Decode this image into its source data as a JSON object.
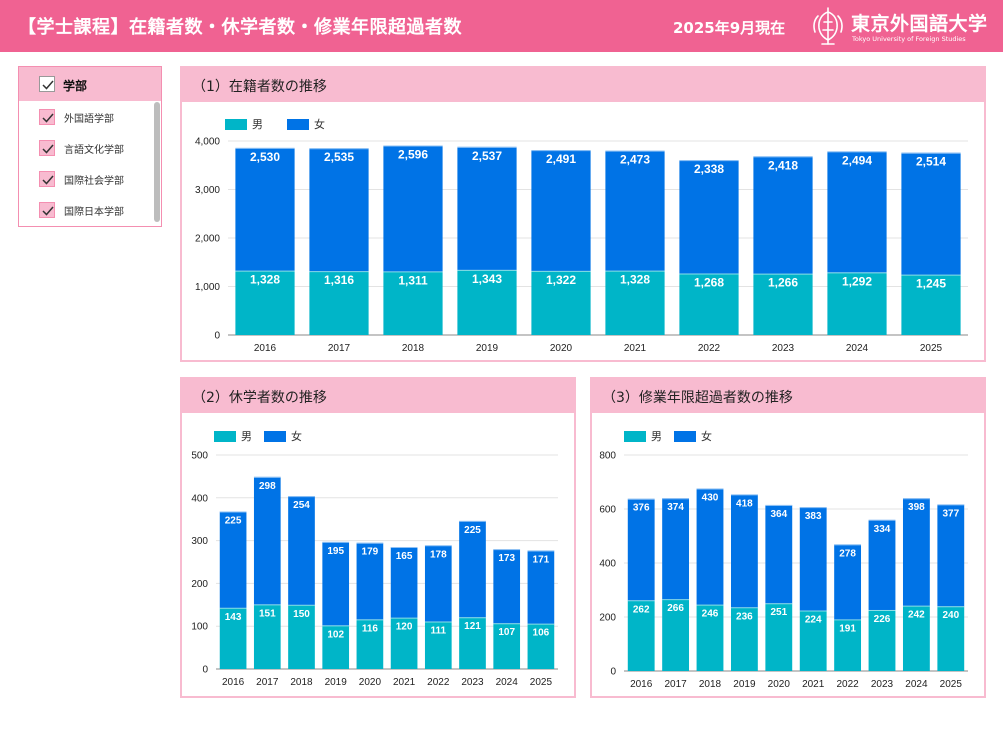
{
  "header": {
    "title": "【学士課程】在籍者数・休学者数・修業年限超過者数",
    "as_of": "2025年9月現在",
    "logo_name": "東京外国語大学",
    "logo_name_en": "Tokyo University of Foreign Studies"
  },
  "colors": {
    "header_bg": "#f06292",
    "panel_head": "#f8bbd0",
    "male": "#00b5c8",
    "female": "#0073e6"
  },
  "filter": {
    "header_label": "学部",
    "items": [
      {
        "label": "外国語学部",
        "checked": true
      },
      {
        "label": "言語文化学部",
        "checked": true
      },
      {
        "label": "国際社会学部",
        "checked": true
      },
      {
        "label": "国際日本学部",
        "checked": true
      }
    ]
  },
  "panels": [
    {
      "title": "（1）在籍者数の推移"
    },
    {
      "title": "（2）休学者数の推移"
    },
    {
      "title": "（3）修業年限超過者数の推移"
    }
  ],
  "chart_data": [
    {
      "type": "bar",
      "stacked": true,
      "title": "（1）在籍者数の推移",
      "categories": [
        "2016",
        "2017",
        "2018",
        "2019",
        "2020",
        "2021",
        "2022",
        "2023",
        "2024",
        "2025"
      ],
      "series": [
        {
          "name": "男",
          "values": [
            1328,
            1316,
            1311,
            1343,
            1322,
            1328,
            1268,
            1266,
            1292,
            1245
          ]
        },
        {
          "name": "女",
          "values": [
            2530,
            2535,
            2596,
            2537,
            2491,
            2473,
            2338,
            2418,
            2494,
            2514
          ]
        }
      ],
      "ylim": [
        0,
        4000
      ],
      "yticks": [
        0,
        1000,
        2000,
        3000,
        4000
      ],
      "ytick_labels": [
        "0",
        "1,000",
        "2,000",
        "3,000",
        "4,000"
      ],
      "legend": "top-left",
      "grid": true
    },
    {
      "type": "bar",
      "stacked": true,
      "title": "（2）休学者数の推移",
      "categories": [
        "2016",
        "2017",
        "2018",
        "2019",
        "2020",
        "2021",
        "2022",
        "2023",
        "2024",
        "2025"
      ],
      "series": [
        {
          "name": "男",
          "values": [
            143,
            151,
            150,
            102,
            116,
            120,
            111,
            121,
            107,
            106
          ]
        },
        {
          "name": "女",
          "values": [
            225,
            298,
            254,
            195,
            179,
            165,
            178,
            225,
            173,
            171
          ]
        }
      ],
      "ylim": [
        0,
        500
      ],
      "yticks": [
        0,
        100,
        200,
        300,
        400,
        500
      ],
      "ytick_labels": [
        "0",
        "100",
        "200",
        "300",
        "400",
        "500"
      ],
      "legend": "top-left",
      "grid": true
    },
    {
      "type": "bar",
      "stacked": true,
      "title": "（3）修業年限超過者数の推移",
      "categories": [
        "2016",
        "2017",
        "2018",
        "2019",
        "2020",
        "2021",
        "2022",
        "2023",
        "2024",
        "2025"
      ],
      "series": [
        {
          "name": "男",
          "values": [
            262,
            266,
            246,
            236,
            251,
            224,
            191,
            226,
            242,
            240
          ]
        },
        {
          "name": "女",
          "values": [
            376,
            374,
            430,
            418,
            364,
            383,
            278,
            334,
            398,
            377
          ]
        }
      ],
      "ylim": [
        0,
        800
      ],
      "yticks": [
        0,
        200,
        400,
        600,
        800
      ],
      "ytick_labels": [
        "0",
        "200",
        "400",
        "600",
        "800"
      ],
      "legend": "top-left",
      "grid": true
    }
  ]
}
